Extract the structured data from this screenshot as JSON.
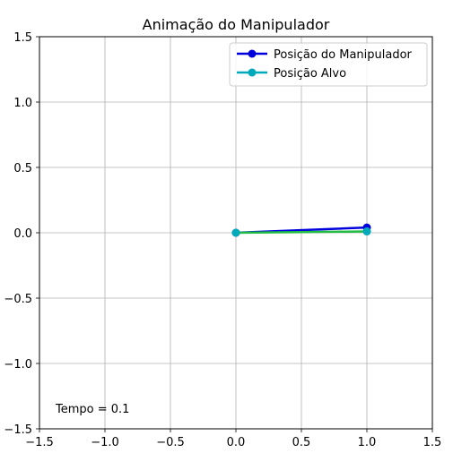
{
  "chart_data": {
    "type": "line",
    "title": "Animação do Manipulador",
    "xlabel": "",
    "ylabel": "",
    "xlim": [
      -1.5,
      1.5
    ],
    "ylim": [
      -1.5,
      1.5
    ],
    "xticks": [
      -1.5,
      -1.0,
      -0.5,
      0.0,
      0.5,
      1.0,
      1.5
    ],
    "yticks": [
      -1.5,
      -1.0,
      -0.5,
      0.0,
      0.5,
      1.0,
      1.5
    ],
    "xtick_labels": [
      "−1.5",
      "−1.0",
      "−0.5",
      "0.0",
      "0.5",
      "1.0",
      "1.5"
    ],
    "ytick_labels": [
      "−1.5",
      "−1.0",
      "−0.5",
      "0.0",
      "0.5",
      "1.0",
      "1.5"
    ],
    "grid": true,
    "legend_position": "top-right",
    "series": [
      {
        "name": "Posição do Manipulador",
        "color": "#0000dd",
        "marker": "circle",
        "x": [
          0.0,
          1.0
        ],
        "y": [
          0.0,
          0.04
        ]
      },
      {
        "name": "Posição Alvo",
        "color": "#00aabb",
        "marker": "circle",
        "x": [
          0.0,
          1.0
        ],
        "y": [
          0.0,
          0.01
        ]
      }
    ],
    "connector_color": "#22bb44",
    "annotation": "Tempo = 0.1"
  }
}
